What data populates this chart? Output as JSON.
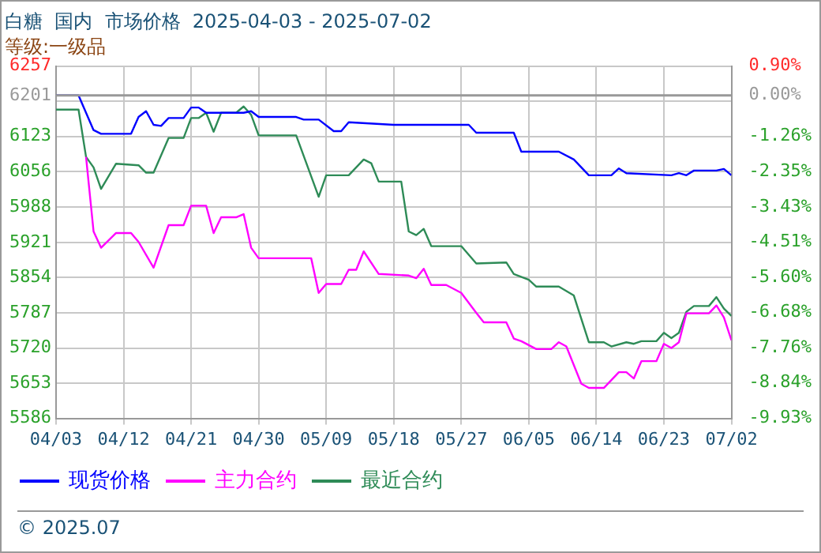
{
  "chart_data": {
    "type": "line",
    "title": "白糖  国内  市场价格  2025-04-03 - 2025-07-02",
    "subtitle": "等级:一级品",
    "xlim": [
      "2025-04-03",
      "2025-07-02"
    ],
    "xticks": [
      {
        "value": "2025-04-03",
        "label": "04/03"
      },
      {
        "value": "2025-04-12",
        "label": "04/12"
      },
      {
        "value": "2025-04-21",
        "label": "04/21"
      },
      {
        "value": "2025-04-30",
        "label": "04/30"
      },
      {
        "value": "2025-05-09",
        "label": "05/09"
      },
      {
        "value": "2025-05-18",
        "label": "05/18"
      },
      {
        "value": "2025-05-27",
        "label": "05/27"
      },
      {
        "value": "2025-06-05",
        "label": "06/05"
      },
      {
        "value": "2025-06-14",
        "label": "06/14"
      },
      {
        "value": "2025-06-23",
        "label": "06/23"
      },
      {
        "value": "2025-07-02",
        "label": "07/02"
      }
    ],
    "ylim": [
      5586,
      6257
    ],
    "yticks": [
      5586,
      5653,
      5720,
      5787,
      5854,
      5921,
      5988,
      6056,
      6123,
      {
        "value": 6190,
        "label": null
      },
      6201,
      6257
    ],
    "y2lim": [
      -9.93,
      0.9
    ],
    "y2ticks": [
      {
        "value": -9.93,
        "label": "-9.93%"
      },
      {
        "value": -8.84,
        "label": "-8.84%"
      },
      {
        "value": -7.76,
        "label": "-7.76%"
      },
      {
        "value": -6.68,
        "label": "-6.68%"
      },
      {
        "value": -5.6,
        "label": "-5.60%"
      },
      {
        "value": -4.51,
        "label": "-4.51%"
      },
      {
        "value": -3.43,
        "label": "-3.43%"
      },
      {
        "value": -2.35,
        "label": "-2.35%"
      },
      {
        "value": -1.26,
        "label": "-1.26%"
      },
      {
        "value": 0,
        "label": "0.00%"
      },
      {
        "value": 0.9,
        "label": "0.90%"
      }
    ],
    "ref_lines": [
      {
        "axis": "y",
        "value": 6201,
        "color": "#999999"
      }
    ],
    "grid": true,
    "legend": "bottom",
    "marker": "none",
    "line_style": "solid",
    "annotations": [
      "© 2025.07"
    ],
    "series": [
      {
        "name": "现货价格",
        "color": "#0000ff",
        "x": [
          "2025-04-03",
          "2025-04-06",
          "2025-04-08",
          "2025-04-09",
          "2025-04-13",
          "2025-04-14",
          "2025-04-15",
          "2025-04-16",
          "2025-04-17",
          "2025-04-18",
          "2025-04-20",
          "2025-04-21",
          "2025-04-22",
          "2025-04-23",
          "2025-04-28",
          "2025-04-29",
          "2025-04-30",
          "2025-05-05",
          "2025-05-06",
          "2025-05-08",
          "2025-05-10",
          "2025-05-11",
          "2025-05-12",
          "2025-05-18",
          "2025-05-28",
          "2025-05-29",
          "2025-06-03",
          "2025-06-04",
          "2025-06-09",
          "2025-06-11",
          "2025-06-13",
          "2025-06-16",
          "2025-06-17",
          "2025-06-18",
          "2025-06-24",
          "2025-06-25",
          "2025-06-26",
          "2025-06-27",
          "2025-06-30",
          "2025-07-01",
          "2025-07-02"
        ],
        "values": [
          6201,
          6201,
          6135,
          6128,
          6128,
          6160,
          6171,
          6145,
          6143,
          6158,
          6158,
          6178,
          6178,
          6168,
          6168,
          6171,
          6160,
          6160,
          6155,
          6155,
          6133,
          6133,
          6150,
          6145,
          6145,
          6130,
          6130,
          6094,
          6094,
          6079,
          6049,
          6049,
          6062,
          6053,
          6049,
          6053,
          6049,
          6058,
          6058,
          6061,
          6049
        ]
      },
      {
        "name": "主力合约",
        "color": "#ff00ff",
        "x": [
          "2025-04-07",
          "2025-04-08",
          "2025-04-09",
          "2025-04-11",
          "2025-04-13",
          "2025-04-14",
          "2025-04-16",
          "2025-04-18",
          "2025-04-20",
          "2025-04-21",
          "2025-04-23",
          "2025-04-24",
          "2025-04-25",
          "2025-04-27",
          "2025-04-28",
          "2025-04-29",
          "2025-04-30",
          "2025-05-07",
          "2025-05-08",
          "2025-05-09",
          "2025-05-11",
          "2025-05-12",
          "2025-05-13",
          "2025-05-14",
          "2025-05-16",
          "2025-05-20",
          "2025-05-21",
          "2025-05-22",
          "2025-05-23",
          "2025-05-25",
          "2025-05-27",
          "2025-05-29",
          "2025-05-30",
          "2025-06-02",
          "2025-06-03",
          "2025-06-04",
          "2025-06-06",
          "2025-06-08",
          "2025-06-09",
          "2025-06-10",
          "2025-06-12",
          "2025-06-13",
          "2025-06-15",
          "2025-06-17",
          "2025-06-18",
          "2025-06-19",
          "2025-06-20",
          "2025-06-22",
          "2025-06-23",
          "2025-06-24",
          "2025-06-25",
          "2025-06-26",
          "2025-06-29",
          "2025-06-30",
          "2025-07-01",
          "2025-07-02"
        ],
        "values": [
          6084,
          5942,
          5911,
          5939,
          5939,
          5922,
          5873,
          5954,
          5954,
          5991,
          5991,
          5939,
          5969,
          5969,
          5975,
          5911,
          5891,
          5891,
          5825,
          5842,
          5842,
          5869,
          5869,
          5904,
          5861,
          5858,
          5853,
          5871,
          5840,
          5840,
          5825,
          5787,
          5769,
          5769,
          5738,
          5733,
          5718,
          5718,
          5731,
          5723,
          5652,
          5644,
          5644,
          5674,
          5674,
          5662,
          5695,
          5695,
          5728,
          5720,
          5731,
          5786,
          5786,
          5801,
          5778,
          5735
        ]
      },
      {
        "name": "最近合约",
        "color": "#2e8b57",
        "x": [
          "2025-04-03",
          "2025-04-06",
          "2025-04-07",
          "2025-04-08",
          "2025-04-09",
          "2025-04-11",
          "2025-04-14",
          "2025-04-15",
          "2025-04-16",
          "2025-04-18",
          "2025-04-20",
          "2025-04-21",
          "2025-04-22",
          "2025-04-23",
          "2025-04-24",
          "2025-04-25",
          "2025-04-27",
          "2025-04-28",
          "2025-04-29",
          "2025-04-30",
          "2025-05-05",
          "2025-05-08",
          "2025-05-09",
          "2025-05-12",
          "2025-05-14",
          "2025-05-15",
          "2025-05-16",
          "2025-05-19",
          "2025-05-20",
          "2025-05-21",
          "2025-05-22",
          "2025-05-23",
          "2025-05-27",
          "2025-05-29",
          "2025-06-02",
          "2025-06-03",
          "2025-06-05",
          "2025-06-06",
          "2025-06-09",
          "2025-06-11",
          "2025-06-13",
          "2025-06-15",
          "2025-06-16",
          "2025-06-18",
          "2025-06-19",
          "2025-06-20",
          "2025-06-22",
          "2025-06-23",
          "2025-06-24",
          "2025-06-25",
          "2025-06-26",
          "2025-06-27",
          "2025-06-29",
          "2025-06-30",
          "2025-07-01",
          "2025-07-02"
        ],
        "values": [
          6174,
          6174,
          6084,
          6064,
          6023,
          6071,
          6068,
          6054,
          6054,
          6120,
          6120,
          6158,
          6158,
          6168,
          6132,
          6168,
          6168,
          6180,
          6164,
          6125,
          6125,
          6008,
          6049,
          6049,
          6079,
          6072,
          6037,
          6037,
          5942,
          5935,
          5947,
          5914,
          5914,
          5881,
          5883,
          5861,
          5850,
          5837,
          5837,
          5820,
          5731,
          5731,
          5723,
          5731,
          5728,
          5733,
          5733,
          5749,
          5739,
          5749,
          5789,
          5800,
          5800,
          5817,
          5795,
          5781
        ]
      }
    ]
  }
}
